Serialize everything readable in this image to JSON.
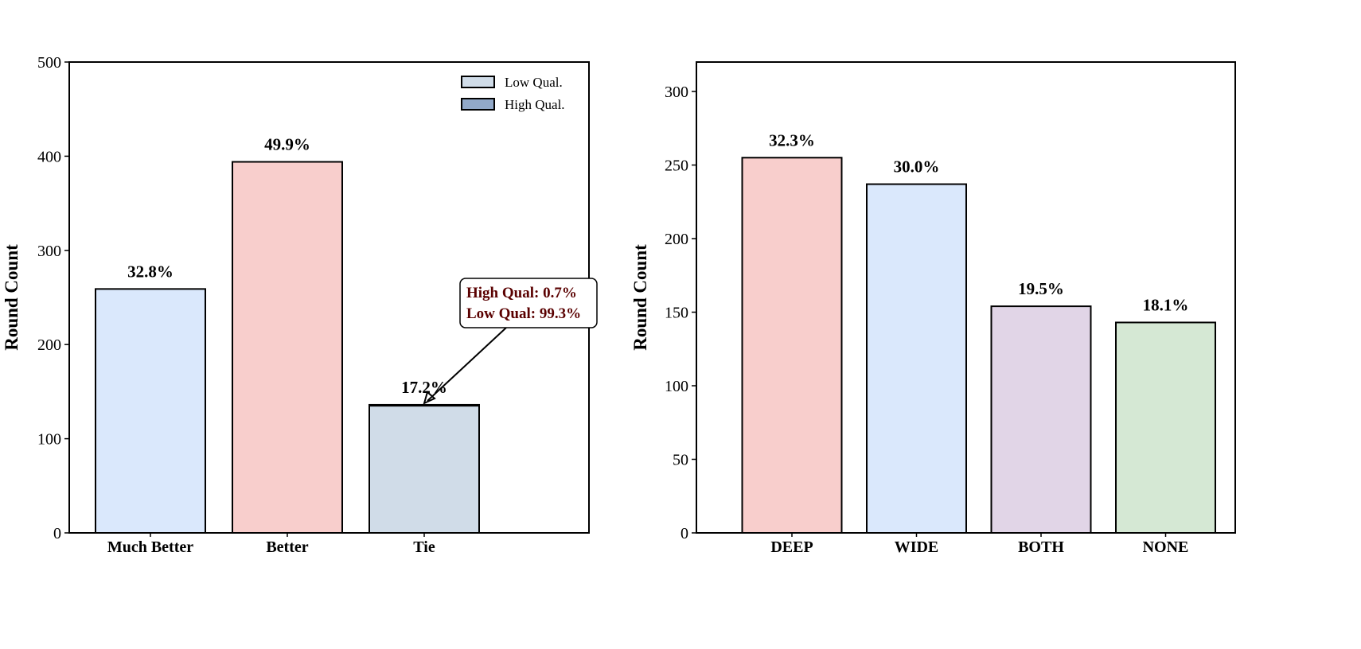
{
  "chart_data": [
    {
      "type": "bar",
      "stacked": true,
      "ylabel": "Round Count",
      "ylim": [
        0,
        500
      ],
      "yticks": [
        0,
        100,
        200,
        300,
        400,
        500
      ],
      "categories": [
        "Much Better",
        "Better",
        "Tie"
      ],
      "values": [
        259,
        394,
        136
      ],
      "bar_colors": [
        "#dae8fc",
        "#f8cecc",
        "#d0dce8"
      ],
      "percent_labels": [
        "32.8%",
        "49.9%",
        "17.2%"
      ],
      "stack_on_tie": {
        "Low Qual.": 135,
        "High Qual.": 1
      },
      "legend": {
        "placement": "top-right",
        "entries": [
          {
            "label": "Low Qual.",
            "color": "#d0dce8"
          },
          {
            "label": "High Qual.",
            "color": "#92a9c9"
          }
        ]
      },
      "annotation": {
        "lines": [
          "High Qual: 0.7%",
          "Low Qual: 99.3%"
        ],
        "color": "#5a0000",
        "target": "Tie"
      },
      "grid": false
    },
    {
      "type": "bar",
      "ylabel": "Round Count",
      "ylim": [
        0,
        320
      ],
      "yticks": [
        0,
        50,
        100,
        150,
        200,
        250,
        300
      ],
      "categories": [
        "DEEP",
        "WIDE",
        "BOTH",
        "NONE"
      ],
      "values": [
        255,
        237,
        154,
        143
      ],
      "bar_colors": [
        "#f8cecc",
        "#dae8fc",
        "#e1d5e7",
        "#d5e8d4"
      ],
      "percent_labels": [
        "32.3%",
        "30.0%",
        "19.5%",
        "18.1%"
      ],
      "grid": false
    }
  ]
}
